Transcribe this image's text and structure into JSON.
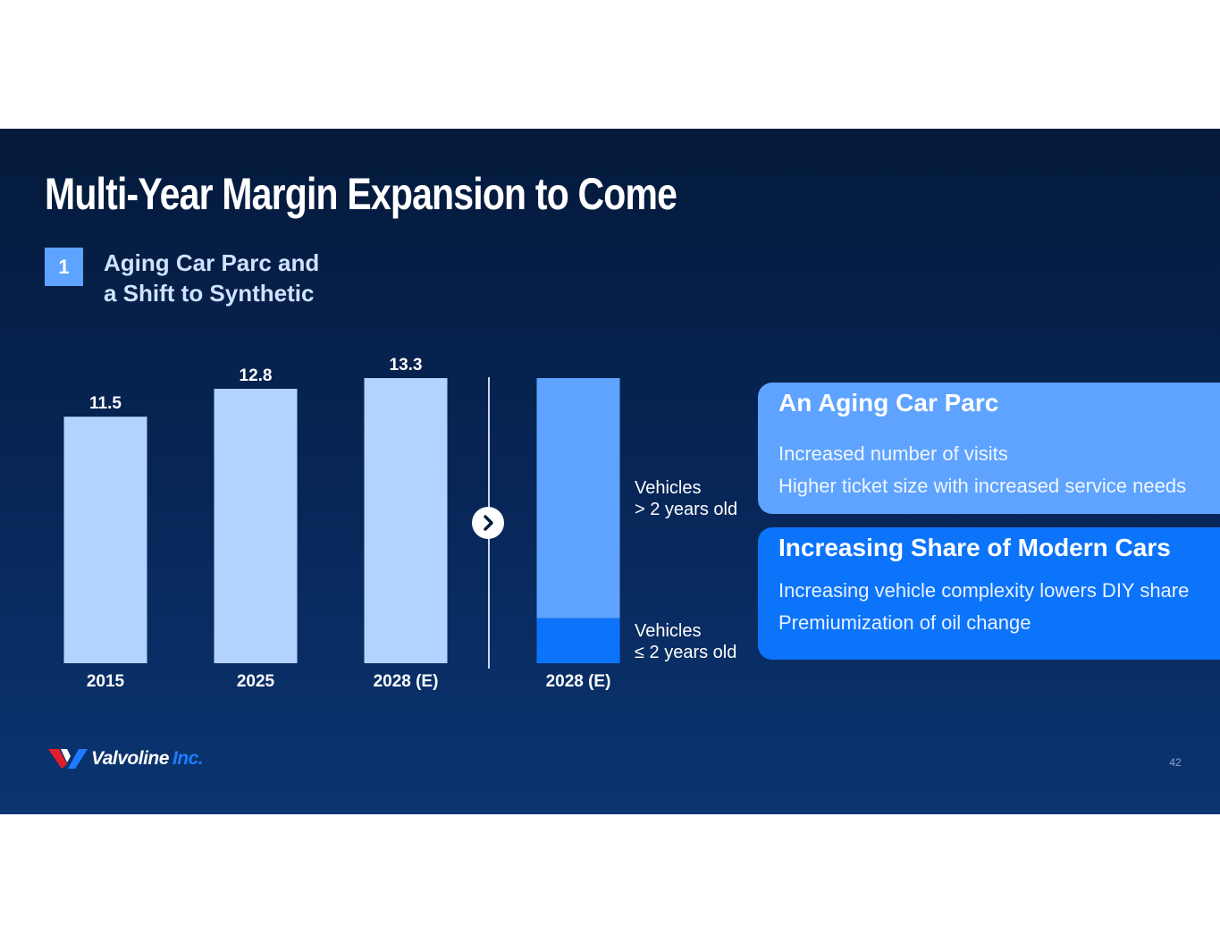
{
  "slide": {
    "title": "Multi-Year Margin Expansion to Come",
    "section_number": "1",
    "subtitle_lines": [
      "Aging Car Parc and",
      "a Shift to Synthetic"
    ],
    "page_number": "42"
  },
  "colors": {
    "bar_light": "#b2d3ff",
    "bar_mid": "#5ea3ff",
    "bar_dark": "#0c74fb",
    "tick_text": "#ffffff",
    "value_text": "#ffffff"
  },
  "chart_data": [
    {
      "type": "bar",
      "title": "",
      "xlabel": "",
      "ylabel": "",
      "categories": [
        "2015",
        "2025",
        "2028 (E)"
      ],
      "values": [
        11.5,
        12.8,
        13.3
      ],
      "data_labels": [
        "11.5",
        "12.8",
        "13.3"
      ],
      "ylim": [
        0,
        13.3
      ]
    },
    {
      "type": "bar",
      "stacked": true,
      "categories": [
        "2028 (E)"
      ],
      "series": [
        {
          "name": "Vehicles ≤ 2 years old",
          "values": [
            2.1
          ]
        },
        {
          "name": "Vehicles > 2 years old",
          "values": [
            11.2
          ]
        }
      ],
      "total": 13.3,
      "ylim": [
        0,
        13.3
      ]
    }
  ],
  "stack_labels": {
    "older": [
      "Vehicles",
      "> 2 years old"
    ],
    "newer": [
      "Vehicles",
      "≤ 2 years old"
    ]
  },
  "cards": [
    {
      "title": "An Aging Car Parc",
      "lines": [
        "Increased number of visits",
        "Higher ticket size with increased service needs"
      ]
    },
    {
      "title": "Increasing Share of Modern Cars",
      "lines": [
        "Increasing vehicle complexity lowers DIY share",
        "Premiumization of oil change"
      ]
    }
  ],
  "logo": {
    "brand": "Valvoline",
    "suffix": "Inc."
  }
}
